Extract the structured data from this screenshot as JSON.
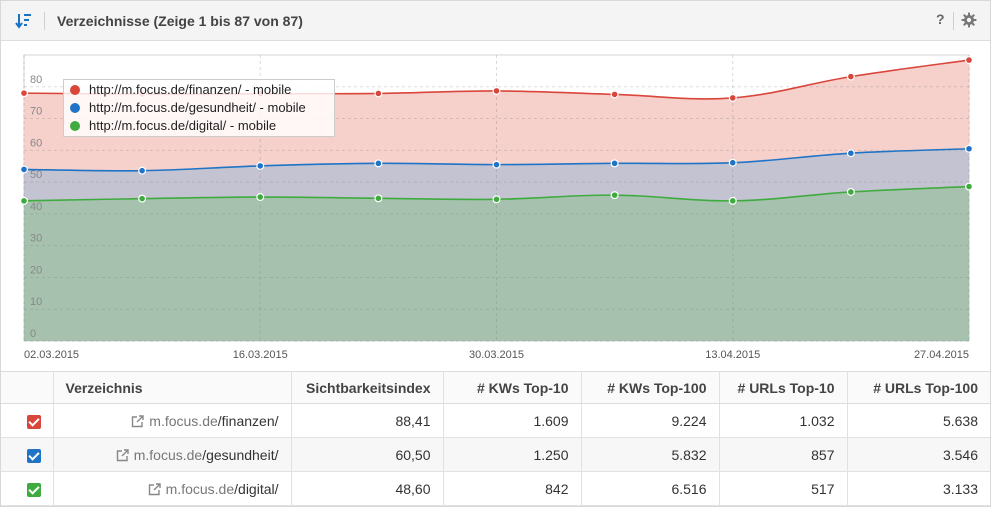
{
  "header": {
    "title": "Verzeichnisse (Zeige 1 bis 87 von 87)",
    "help_label": "?",
    "icons": [
      "sort-icon",
      "help-icon",
      "gear-icon"
    ]
  },
  "chart_data": {
    "type": "area",
    "x": [
      "02.03.2015",
      "09.03.2015",
      "16.03.2015",
      "23.03.2015",
      "30.03.2015",
      "06.04.2015",
      "13.04.2015",
      "20.04.2015",
      "27.04.2015"
    ],
    "x_tick_labels": [
      "02.03.2015",
      "16.03.2015",
      "30.03.2015",
      "13.04.2015",
      "27.04.2015"
    ],
    "y_ticks": [
      "0",
      "10",
      "20",
      "30",
      "40",
      "50",
      "60",
      "70",
      "80"
    ],
    "ylim": [
      0,
      90
    ],
    "grid": true,
    "legend_position": "top-left",
    "series": [
      {
        "name": "http://m.focus.de/finanzen/ - mobile",
        "color": "#d9463b",
        "fill": "#f6d0cb",
        "values": [
          78.0,
          77.7,
          77.8,
          77.9,
          78.7,
          77.6,
          76.5,
          83.2,
          88.4
        ]
      },
      {
        "name": "http://m.focus.de/gesundheit/ - mobile",
        "color": "#1f74c6",
        "fill": "#c4c3d2",
        "values": [
          54.0,
          53.6,
          55.1,
          55.9,
          55.5,
          55.9,
          56.1,
          59.1,
          60.5
        ]
      },
      {
        "name": "http://m.focus.de/digital/ - mobile",
        "color": "#3fab3f",
        "fill": "#a6c2ae",
        "values": [
          44.1,
          44.8,
          45.3,
          44.9,
          44.6,
          45.9,
          44.1,
          46.9,
          48.6
        ]
      }
    ]
  },
  "table": {
    "columns": [
      "",
      "Verzeichnis",
      "Sichtbarkeitsindex",
      "# KWs Top-10",
      "# KWs Top-100",
      "# URLs Top-10",
      "# URLs Top-100"
    ],
    "rows": [
      {
        "color": "#d9463b",
        "domain": "m.focus.de",
        "path": "/finanzen/",
        "si": "88,41",
        "kw10": "1.609",
        "kw100": "9.224",
        "url10": "1.032",
        "url100": "5.638"
      },
      {
        "color": "#1f74c6",
        "domain": "m.focus.de",
        "path": "/gesundheit/",
        "si": "60,50",
        "kw10": "1.250",
        "kw100": "5.832",
        "url10": "857",
        "url100": "3.546"
      },
      {
        "color": "#3fab3f",
        "domain": "m.focus.de",
        "path": "/digital/",
        "si": "48,60",
        "kw10": "842",
        "kw100": "6.516",
        "url10": "517",
        "url100": "3.133"
      }
    ]
  }
}
